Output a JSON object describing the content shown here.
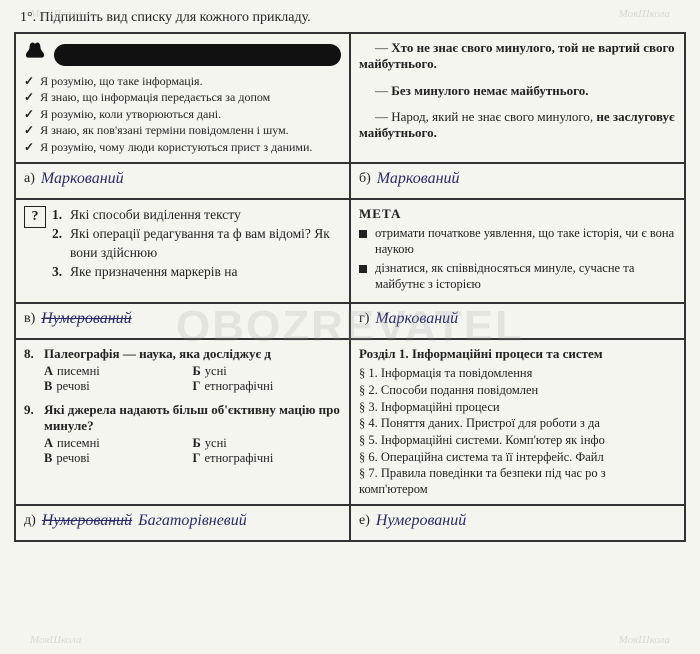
{
  "title": "1°. Підпишіть вид списку для кожного прикладу.",
  "watermark_main": "OBOZREVATEL",
  "watermark_small": "МояШкола",
  "cells": {
    "a": {
      "checks": [
        "Я розумію, що таке інформація.",
        "Я знаю, що інформація передається за допом",
        "Я розумію, коли утворюються дані.",
        "Я знаю, як пов'язані терміни повідомленн і шум.",
        "Я розумію, чому люди користуються прист з даними."
      ],
      "letter": "а)",
      "answer": "Маркований"
    },
    "b": {
      "quotes": [
        {
          "pre": "— ",
          "bold": "Хто не знає свого минулого, той не вартий свого майбутнього."
        },
        {
          "pre": "— ",
          "bold": "Без минулого немає майбутнього."
        },
        {
          "pre": "— ",
          "plain": "Народ, який не знає свого минулого, ",
          "bold2": "не заслуговує майбутнього."
        }
      ],
      "letter": "б)",
      "answer": "Маркований"
    },
    "v": {
      "items": [
        "Які способи виділення тексту",
        "Які операції редагування та ф вам відомі? Як вони здійснюю",
        "Яке призначення маркерів на"
      ],
      "letter": "в)",
      "answer": "Нумерований"
    },
    "g": {
      "meta": "МЕТА",
      "bullets": [
        "отримати початкове уявлення, що таке історія, чи є вона наукою",
        "дізнатися, як співвідносяться минуле, сучасне та майбутнє з історією"
      ],
      "letter": "г)",
      "answer": "Маркований"
    },
    "d": {
      "q8": {
        "num": "8.",
        "text": "Палеографія — наука, яка досліджує д",
        "opts": [
          [
            "А",
            "писемні"
          ],
          [
            "Б",
            "усні"
          ],
          [
            "В",
            "речові"
          ],
          [
            "Г",
            "етнографічні"
          ]
        ]
      },
      "q9": {
        "num": "9.",
        "text": "Які джерела надають більш об'єктивну мацію про минуле?",
        "opts": [
          [
            "А",
            "писемні"
          ],
          [
            "Б",
            "усні"
          ],
          [
            "В",
            "речові"
          ],
          [
            "Г",
            "етнографічні"
          ]
        ]
      },
      "letter": "д)",
      "answer_strike": "Нумерований",
      "answer": "Багаторівневий"
    },
    "e": {
      "heading": "Розділ 1. Інформаційні процеси та систем",
      "items": [
        "§ 1. Інформація та повідомлення",
        "§ 2. Способи подання повідомлен",
        "§ 3. Інформаційні процеси",
        "§ 4. Поняття даних. Пристрої для роботи з да",
        "§ 5. Інформаційні системи. Комп'ютер як інфо",
        "§ 6. Операційна система та її інтерфейс. Файл",
        "§ 7. Правила поведінки та безпеки під час ро з комп'ютером"
      ],
      "letter": "е)",
      "answer": "Нумерований"
    }
  }
}
